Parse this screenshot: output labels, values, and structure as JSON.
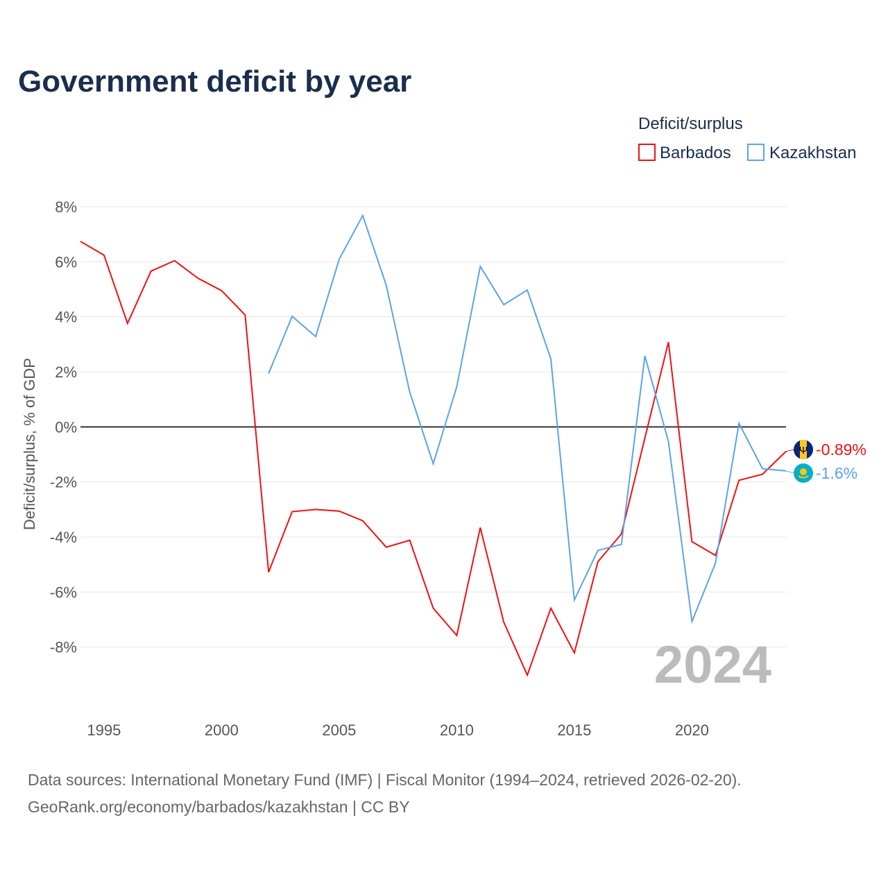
{
  "chart_data": {
    "type": "line",
    "title": "Government deficit by year",
    "xlabel": "",
    "ylabel": "Deficit/surplus, % of GDP",
    "xlim": [
      1994,
      2024
    ],
    "ylim": [
      -10,
      8
    ],
    "x_ticks": [
      1995,
      2000,
      2005,
      2010,
      2015,
      2020
    ],
    "x_tick_labels": [
      "1995",
      "2000",
      "2005",
      "2010",
      "2015",
      "2020"
    ],
    "y_ticks": [
      8,
      6,
      4,
      2,
      0,
      -2,
      -4,
      -6,
      -8
    ],
    "y_tick_labels": [
      "8%",
      "6%",
      "4%",
      "2%",
      "0%",
      "-2%",
      "-4%",
      "-6%",
      "-8%"
    ],
    "grid": true,
    "legend_title": "Deficit/surplus",
    "legend_position": "top-right",
    "year_watermark": "2024",
    "series": [
      {
        "name": "Barbados",
        "color": "#ee1111",
        "end_label": "-0.89%",
        "x": [
          1994,
          1995,
          1996,
          1997,
          1998,
          1999,
          2000,
          2001,
          2002,
          2003,
          2004,
          2005,
          2006,
          2007,
          2008,
          2009,
          2010,
          2011,
          2012,
          2013,
          2014,
          2015,
          2016,
          2017,
          2018,
          2019,
          2020,
          2021,
          2022,
          2023,
          2024
        ],
        "values": [
          6.74,
          6.24,
          3.76,
          5.66,
          6.04,
          5.4,
          4.95,
          4.07,
          -5.28,
          -3.08,
          -3.0,
          -3.06,
          -3.41,
          -4.37,
          -4.12,
          -6.59,
          -7.58,
          -3.66,
          -7.1,
          -9.02,
          -6.59,
          -8.21,
          -4.9,
          -3.89,
          -0.4,
          3.08,
          -4.17,
          -4.67,
          -1.94,
          -1.72,
          -0.89
        ]
      },
      {
        "name": "Kazakhstan",
        "color": "#5ba3e8",
        "end_label": "-1.6%",
        "x": [
          2002,
          2003,
          2004,
          2005,
          2006,
          2007,
          2008,
          2009,
          2010,
          2011,
          2012,
          2013,
          2014,
          2015,
          2016,
          2017,
          2018,
          2019,
          2020,
          2021,
          2022,
          2023,
          2024
        ],
        "values": [
          1.94,
          4.02,
          3.28,
          6.09,
          7.68,
          5.15,
          1.26,
          -1.34,
          1.46,
          5.83,
          4.44,
          4.97,
          2.47,
          -6.29,
          -4.49,
          -4.27,
          2.58,
          -0.53,
          -7.07,
          -4.95,
          0.13,
          -1.52,
          -1.6
        ]
      }
    ]
  },
  "footer": {
    "line1": "Data sources: International Monetary Fund (IMF) | Fiscal Monitor (1994–2024, retrieved 2026-02-20).",
    "line2": "GeoRank.org/economy/barbados/kazakhstan | CC BY"
  }
}
